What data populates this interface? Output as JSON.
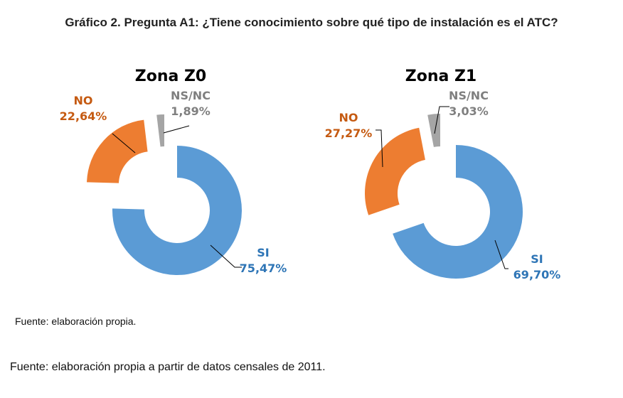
{
  "title": "Gráfico 2. Pregunta A1: ¿Tiene conocimiento sobre qué tipo de instalación es el ATC?",
  "chart_data": [
    {
      "type": "pie",
      "donut": true,
      "title": "Zona Z0",
      "slices": [
        {
          "label": "SI",
          "value": 75.47,
          "text": "75,47%",
          "color": "#5B9BD5"
        },
        {
          "label": "NO",
          "value": 22.64,
          "text": "22,64%",
          "color": "#ED7D31"
        },
        {
          "label": "NS/NC",
          "value": 1.89,
          "text": "1,89%",
          "color": "#A5A5A5"
        }
      ]
    },
    {
      "type": "pie",
      "donut": true,
      "title": "Zona Z1",
      "slices": [
        {
          "label": "SI",
          "value": 69.7,
          "text": "69,70%",
          "color": "#5B9BD5"
        },
        {
          "label": "NO",
          "value": 27.27,
          "text": "27,27%",
          "color": "#ED7D31"
        },
        {
          "label": "NS/NC",
          "value": 3.03,
          "text": "3,03%",
          "color": "#A5A5A5"
        }
      ]
    }
  ],
  "label_colors": {
    "SI": "#2E75B6",
    "NO": "#C55A11",
    "NS/NC": "#7F7F7F"
  },
  "source_1": "Fuente: elaboración propia.",
  "source_2": "Fuente: elaboración propia a partir de datos censales de 2011."
}
